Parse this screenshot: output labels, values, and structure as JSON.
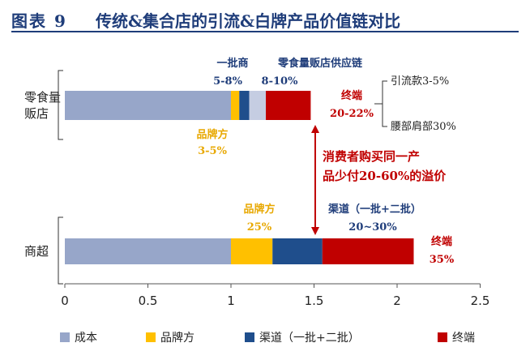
{
  "figure": {
    "number": "图表 9",
    "title": "传统&集合店的引流&白牌产品价值链对比"
  },
  "colors": {
    "cost": "#97a6c9",
    "brand": "#ffc000",
    "channel": "#1f4e8c",
    "terminal": "#c00000",
    "navy_text": "#1f3d7a",
    "gold_text": "#e8a800",
    "red_text": "#c00000"
  },
  "chart_data": {
    "type": "bar",
    "orientation": "horizontal",
    "stacked": true,
    "categories": [
      "零食量贩店",
      "商超"
    ],
    "category_lines": [
      [
        "零食量",
        "贩店"
      ],
      [
        "商超"
      ]
    ],
    "series": [
      {
        "name": "成本",
        "values": [
          1.0,
          1.0
        ]
      },
      {
        "name": "品牌方",
        "values": [
          0.05,
          0.25
        ]
      },
      {
        "name": "渠道（一批+二批）",
        "values": [
          0.06,
          0.3
        ]
      },
      {
        "name": "零食量贩店供应链",
        "values": [
          0.1,
          0
        ]
      },
      {
        "name": "终端",
        "values": [
          0.27,
          0.55
        ]
      }
    ],
    "xlim": [
      0,
      2.5
    ],
    "xticks": [
      "0",
      "0.5",
      "1",
      "1.5",
      "2",
      "2.5"
    ],
    "xtick_values": [
      0,
      0.5,
      1,
      1.5,
      2,
      2.5
    ],
    "legend": [
      "成本",
      "品牌方",
      "渠道（一批+二批）",
      "终端"
    ],
    "legend_position": "bottom",
    "annotations": {
      "snack_first_batch": {
        "name": "一批商",
        "range": "5-8%"
      },
      "snack_supply_chain": {
        "name": "零食量贩店供应链",
        "range": "8-10%"
      },
      "snack_terminal": {
        "name": "终端",
        "range": "20-22%"
      },
      "snack_brand": {
        "name": "品牌方",
        "range": "3-5%"
      },
      "snack_split": [
        "引流款3-5%",
        "腰部肩部30%"
      ],
      "premium": [
        "消费者购买同一产",
        "品少付20-60%的溢价"
      ],
      "market_brand": {
        "name": "品牌方",
        "range": "25%"
      },
      "market_channel": {
        "name": "渠道（一批+二批）",
        "range": "20~30%"
      },
      "market_terminal": {
        "name": "终端",
        "range": "35%"
      }
    }
  }
}
